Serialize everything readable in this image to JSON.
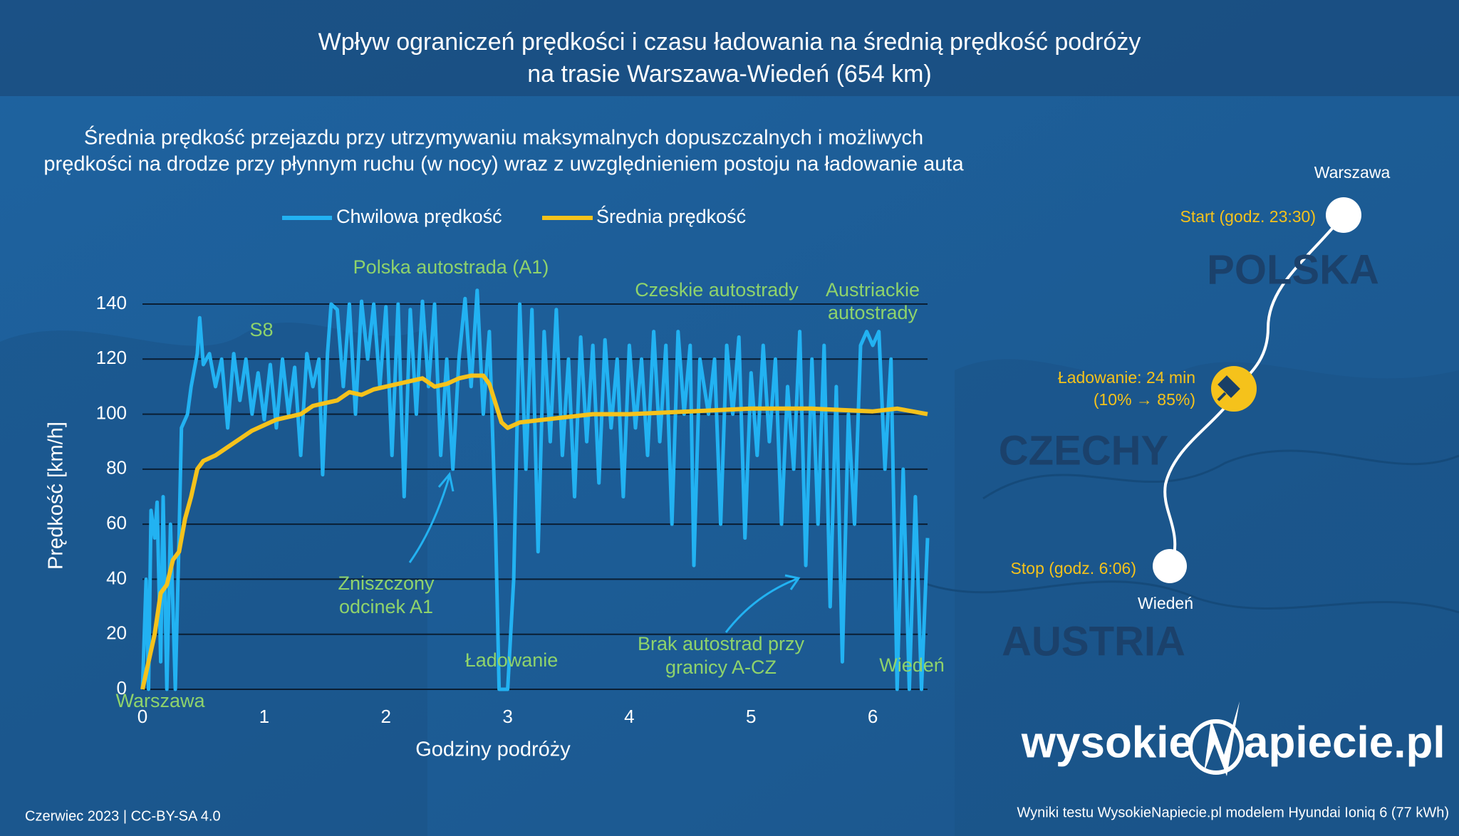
{
  "title": [
    "Wpływ ograniczeń prędkości i czasu ładowania na średnią prędkość podróży",
    "na trasie Warszawa-Wiedeń (654 km)"
  ],
  "chart_data": {
    "type": "line",
    "subtitle": [
      "Średnia prędkość przejazdu przy utrzymywaniu maksymalnych dopuszczalnych i możliwych",
      "prędkości na drodze przy płynnym ruchu (w nocy) wraz z uwzględnieniem postoju na ładowanie auta"
    ],
    "x_label": "Godziny podróży",
    "y_label": "Prędkość  [km/h]",
    "xlim": [
      0,
      6.45
    ],
    "ylim": [
      0,
      140
    ],
    "xticks": [
      0,
      1,
      2,
      3,
      4,
      5,
      6
    ],
    "yticks": [
      0,
      20,
      40,
      60,
      80,
      100,
      120,
      140
    ],
    "grid": true,
    "series": [
      {
        "name": "Chwilowa prędkość",
        "color": "#22b2f2",
        "x": [
          0,
          0.03,
          0.05,
          0.07,
          0.1,
          0.12,
          0.15,
          0.17,
          0.2,
          0.23,
          0.27,
          0.3,
          0.32,
          0.37,
          0.4,
          0.45,
          0.47,
          0.5,
          0.55,
          0.6,
          0.65,
          0.7,
          0.75,
          0.8,
          0.85,
          0.9,
          0.95,
          1.0,
          1.05,
          1.1,
          1.15,
          1.2,
          1.25,
          1.3,
          1.35,
          1.4,
          1.45,
          1.48,
          1.52,
          1.55,
          1.6,
          1.65,
          1.7,
          1.75,
          1.8,
          1.85,
          1.9,
          1.95,
          2.0,
          2.05,
          2.1,
          2.15,
          2.2,
          2.25,
          2.3,
          2.35,
          2.4,
          2.45,
          2.5,
          2.55,
          2.6,
          2.65,
          2.7,
          2.75,
          2.8,
          2.85,
          2.9,
          2.93,
          3.0,
          3.05,
          3.1,
          3.15,
          3.2,
          3.25,
          3.3,
          3.35,
          3.4,
          3.45,
          3.5,
          3.55,
          3.6,
          3.65,
          3.7,
          3.75,
          3.8,
          3.85,
          3.9,
          3.95,
          4.0,
          4.05,
          4.1,
          4.15,
          4.2,
          4.25,
          4.3,
          4.35,
          4.4,
          4.45,
          4.5,
          4.53,
          4.58,
          4.65,
          4.7,
          4.75,
          4.8,
          4.85,
          4.9,
          4.95,
          5.0,
          5.05,
          5.1,
          5.15,
          5.2,
          5.25,
          5.3,
          5.35,
          5.4,
          5.45,
          5.5,
          5.55,
          5.6,
          5.65,
          5.7,
          5.75,
          5.8,
          5.85,
          5.9,
          5.95,
          6.0,
          6.05,
          6.1,
          6.15,
          6.2,
          6.25,
          6.3,
          6.35,
          6.4,
          6.45
        ],
        "values": [
          0,
          40,
          0,
          65,
          55,
          68,
          10,
          70,
          0,
          60,
          0,
          55,
          95,
          100,
          110,
          122,
          135,
          118,
          122,
          110,
          120,
          95,
          122,
          105,
          120,
          100,
          115,
          98,
          118,
          95,
          120,
          100,
          117,
          85,
          122,
          110,
          120,
          78,
          122,
          140,
          138,
          110,
          140,
          100,
          141,
          120,
          140,
          110,
          139,
          85,
          140,
          70,
          138,
          100,
          141,
          110,
          140,
          85,
          120,
          80,
          120,
          142,
          110,
          145,
          100,
          130,
          60,
          0,
          0,
          40,
          140,
          80,
          138,
          50,
          130,
          90,
          138,
          85,
          120,
          70,
          128,
          90,
          125,
          75,
          127,
          95,
          120,
          70,
          125,
          95,
          120,
          85,
          130,
          90,
          125,
          60,
          130,
          100,
          125,
          45,
          120,
          100,
          120,
          60,
          125,
          100,
          128,
          55,
          115,
          85,
          125,
          90,
          120,
          60,
          110,
          80,
          130,
          45,
          120,
          60,
          125,
          30,
          110,
          10,
          100,
          60,
          125,
          130,
          125,
          130,
          80,
          120,
          0,
          80,
          0,
          70,
          0,
          55
        ]
      },
      {
        "name": "Średnia prędkość",
        "color": "#f5c21b",
        "x": [
          0,
          0.05,
          0.1,
          0.15,
          0.2,
          0.25,
          0.3,
          0.35,
          0.4,
          0.45,
          0.5,
          0.6,
          0.7,
          0.8,
          0.9,
          1.0,
          1.1,
          1.2,
          1.3,
          1.4,
          1.5,
          1.6,
          1.7,
          1.8,
          1.9,
          2.0,
          2.1,
          2.2,
          2.3,
          2.4,
          2.5,
          2.6,
          2.7,
          2.8,
          2.85,
          2.9,
          2.95,
          3.0,
          3.1,
          3.3,
          3.5,
          3.7,
          4.0,
          4.5,
          5.0,
          5.5,
          6.0,
          6.2,
          6.45
        ],
        "values": [
          0,
          10,
          20,
          35,
          38,
          47,
          50,
          62,
          70,
          80,
          83,
          85,
          88,
          91,
          94,
          96,
          98,
          99,
          100,
          103,
          104,
          105,
          108,
          107,
          109,
          110,
          111,
          112,
          113,
          110,
          111,
          113,
          114,
          114,
          111,
          104,
          97,
          95,
          97,
          98,
          99,
          100,
          100,
          101,
          102,
          102,
          101,
          102,
          100
        ]
      }
    ],
    "annotations": [
      [
        "Polska autostrada (A1)"
      ],
      [
        "S8"
      ],
      [
        "Czeskie autostrady"
      ],
      [
        "Austriackie",
        "autostrady"
      ],
      [
        "Zniszczony",
        "odcinek A1"
      ],
      [
        "Ładowanie"
      ],
      [
        "Brak autostrad przy",
        "granicy A-CZ"
      ],
      [
        "Warszawa"
      ],
      [
        "Wiedeń"
      ]
    ]
  },
  "map": {
    "start_city": "Warszawa",
    "start": "Start (godz. 23:30)",
    "country_1": "POLSKA",
    "charging": [
      "Ładowanie: 24 min",
      "(10% → 85%)"
    ],
    "country_2": "CZECHY",
    "stop": "Stop (godz. 6:06)",
    "end_city": "Wiedeń",
    "country_3": "AUSTRIA"
  },
  "logo": [
    "wysokie",
    "apiecie.pl"
  ],
  "footer": {
    "left": "Czerwiec 2023  |  CC-BY-SA 4.0",
    "right": "Wyniki testu WysokieNapiecie.pl modelem Hyundai Ioniq 6 (77 kWh)"
  }
}
